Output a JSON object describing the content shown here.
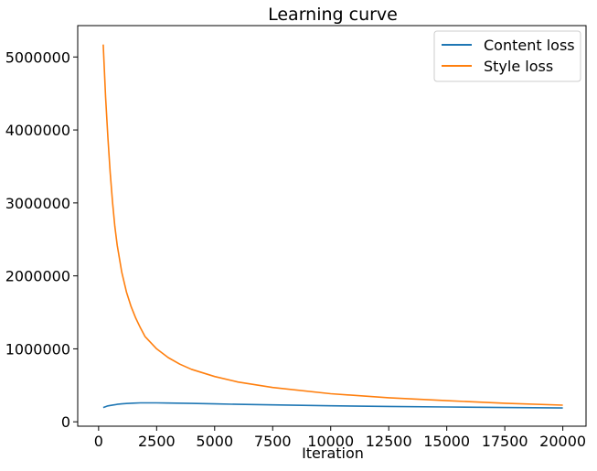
{
  "chart_data": {
    "type": "line",
    "title": "Learning curve",
    "xlabel": "Iteration",
    "ylabel": "",
    "xlim": [
      -900,
      21000
    ],
    "ylim": [
      -60000,
      5430000
    ],
    "xticks": [
      0,
      2500,
      5000,
      7500,
      10000,
      12500,
      15000,
      17500,
      20000
    ],
    "yticks": [
      0,
      1000000,
      2000000,
      3000000,
      4000000,
      5000000
    ],
    "xtick_labels": [
      "0",
      "2500",
      "5000",
      "7500",
      "10000",
      "12500",
      "15000",
      "17500",
      "20000"
    ],
    "ytick_labels": [
      "0",
      "1000000",
      "2000000",
      "3000000",
      "4000000",
      "5000000"
    ],
    "grid": false,
    "legend_position": "top-right",
    "series": [
      {
        "name": "Content loss",
        "color": "#1f77b4",
        "x": [
          200,
          400,
          600,
          800,
          1000,
          1200,
          1500,
          1800,
          2100,
          2500,
          3000,
          4000,
          5000,
          6000,
          7500,
          10000,
          12500,
          15000,
          17500,
          20000
        ],
        "y": [
          196000,
          218000,
          230000,
          239000,
          246000,
          251000,
          256000,
          259000,
          260000,
          259000,
          257000,
          252000,
          246000,
          240000,
          232000,
          220000,
          211000,
          203000,
          196000,
          190000
        ]
      },
      {
        "name": "Style loss",
        "color": "#ff7f0e",
        "x": [
          200,
          300,
          400,
          500,
          600,
          700,
          800,
          1000,
          1200,
          1400,
          1600,
          1800,
          2000,
          2500,
          3000,
          3500,
          4000,
          5000,
          6000,
          7500,
          10000,
          12500,
          15000,
          17500,
          20000
        ],
        "y": [
          5170000,
          4450000,
          3900000,
          3420000,
          3010000,
          2680000,
          2420000,
          2050000,
          1780000,
          1580000,
          1420000,
          1290000,
          1170000,
          1000000,
          880000,
          790000,
          720000,
          620000,
          545000,
          470000,
          385000,
          330000,
          290000,
          255000,
          228000
        ]
      }
    ]
  }
}
